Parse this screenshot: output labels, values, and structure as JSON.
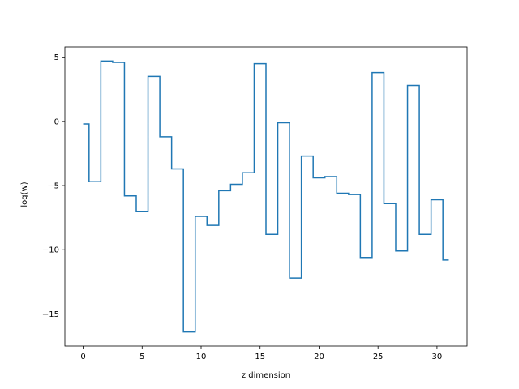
{
  "chart_data": {
    "type": "line",
    "drawstyle": "steps-mid",
    "xlabel": "z dimension",
    "ylabel": "log(w)",
    "xlim": [
      -1.55,
      32.55
    ],
    "ylim": [
      -17.5,
      5.8
    ],
    "xticks": [
      0,
      5,
      10,
      15,
      20,
      25,
      30
    ],
    "yticks": [
      5,
      0,
      -5,
      -10,
      -15
    ],
    "xtick_labels": [
      "0",
      "5",
      "10",
      "15",
      "20",
      "25",
      "30"
    ],
    "ytick_labels": [
      "5",
      "0",
      "−5",
      "−10",
      "−15"
    ],
    "grid": false,
    "series": [
      {
        "color": "#1f77b4",
        "x": [
          0,
          1,
          2,
          3,
          4,
          5,
          6,
          7,
          8,
          9,
          10,
          11,
          12,
          13,
          14,
          15,
          16,
          17,
          18,
          19,
          20,
          21,
          22,
          23,
          24,
          25,
          26,
          27,
          28,
          29,
          30,
          31
        ],
        "y": [
          -0.2,
          -4.7,
          4.7,
          4.6,
          -5.8,
          -7.0,
          3.5,
          -1.2,
          -3.7,
          -16.4,
          -7.4,
          -8.1,
          -5.4,
          -4.9,
          -4.0,
          4.5,
          -8.8,
          -0.1,
          -12.2,
          -2.7,
          -4.4,
          -4.3,
          -5.6,
          -5.7,
          -10.6,
          3.8,
          -6.4,
          -10.1,
          2.8,
          -8.8,
          -6.1,
          -10.8
        ]
      }
    ]
  }
}
